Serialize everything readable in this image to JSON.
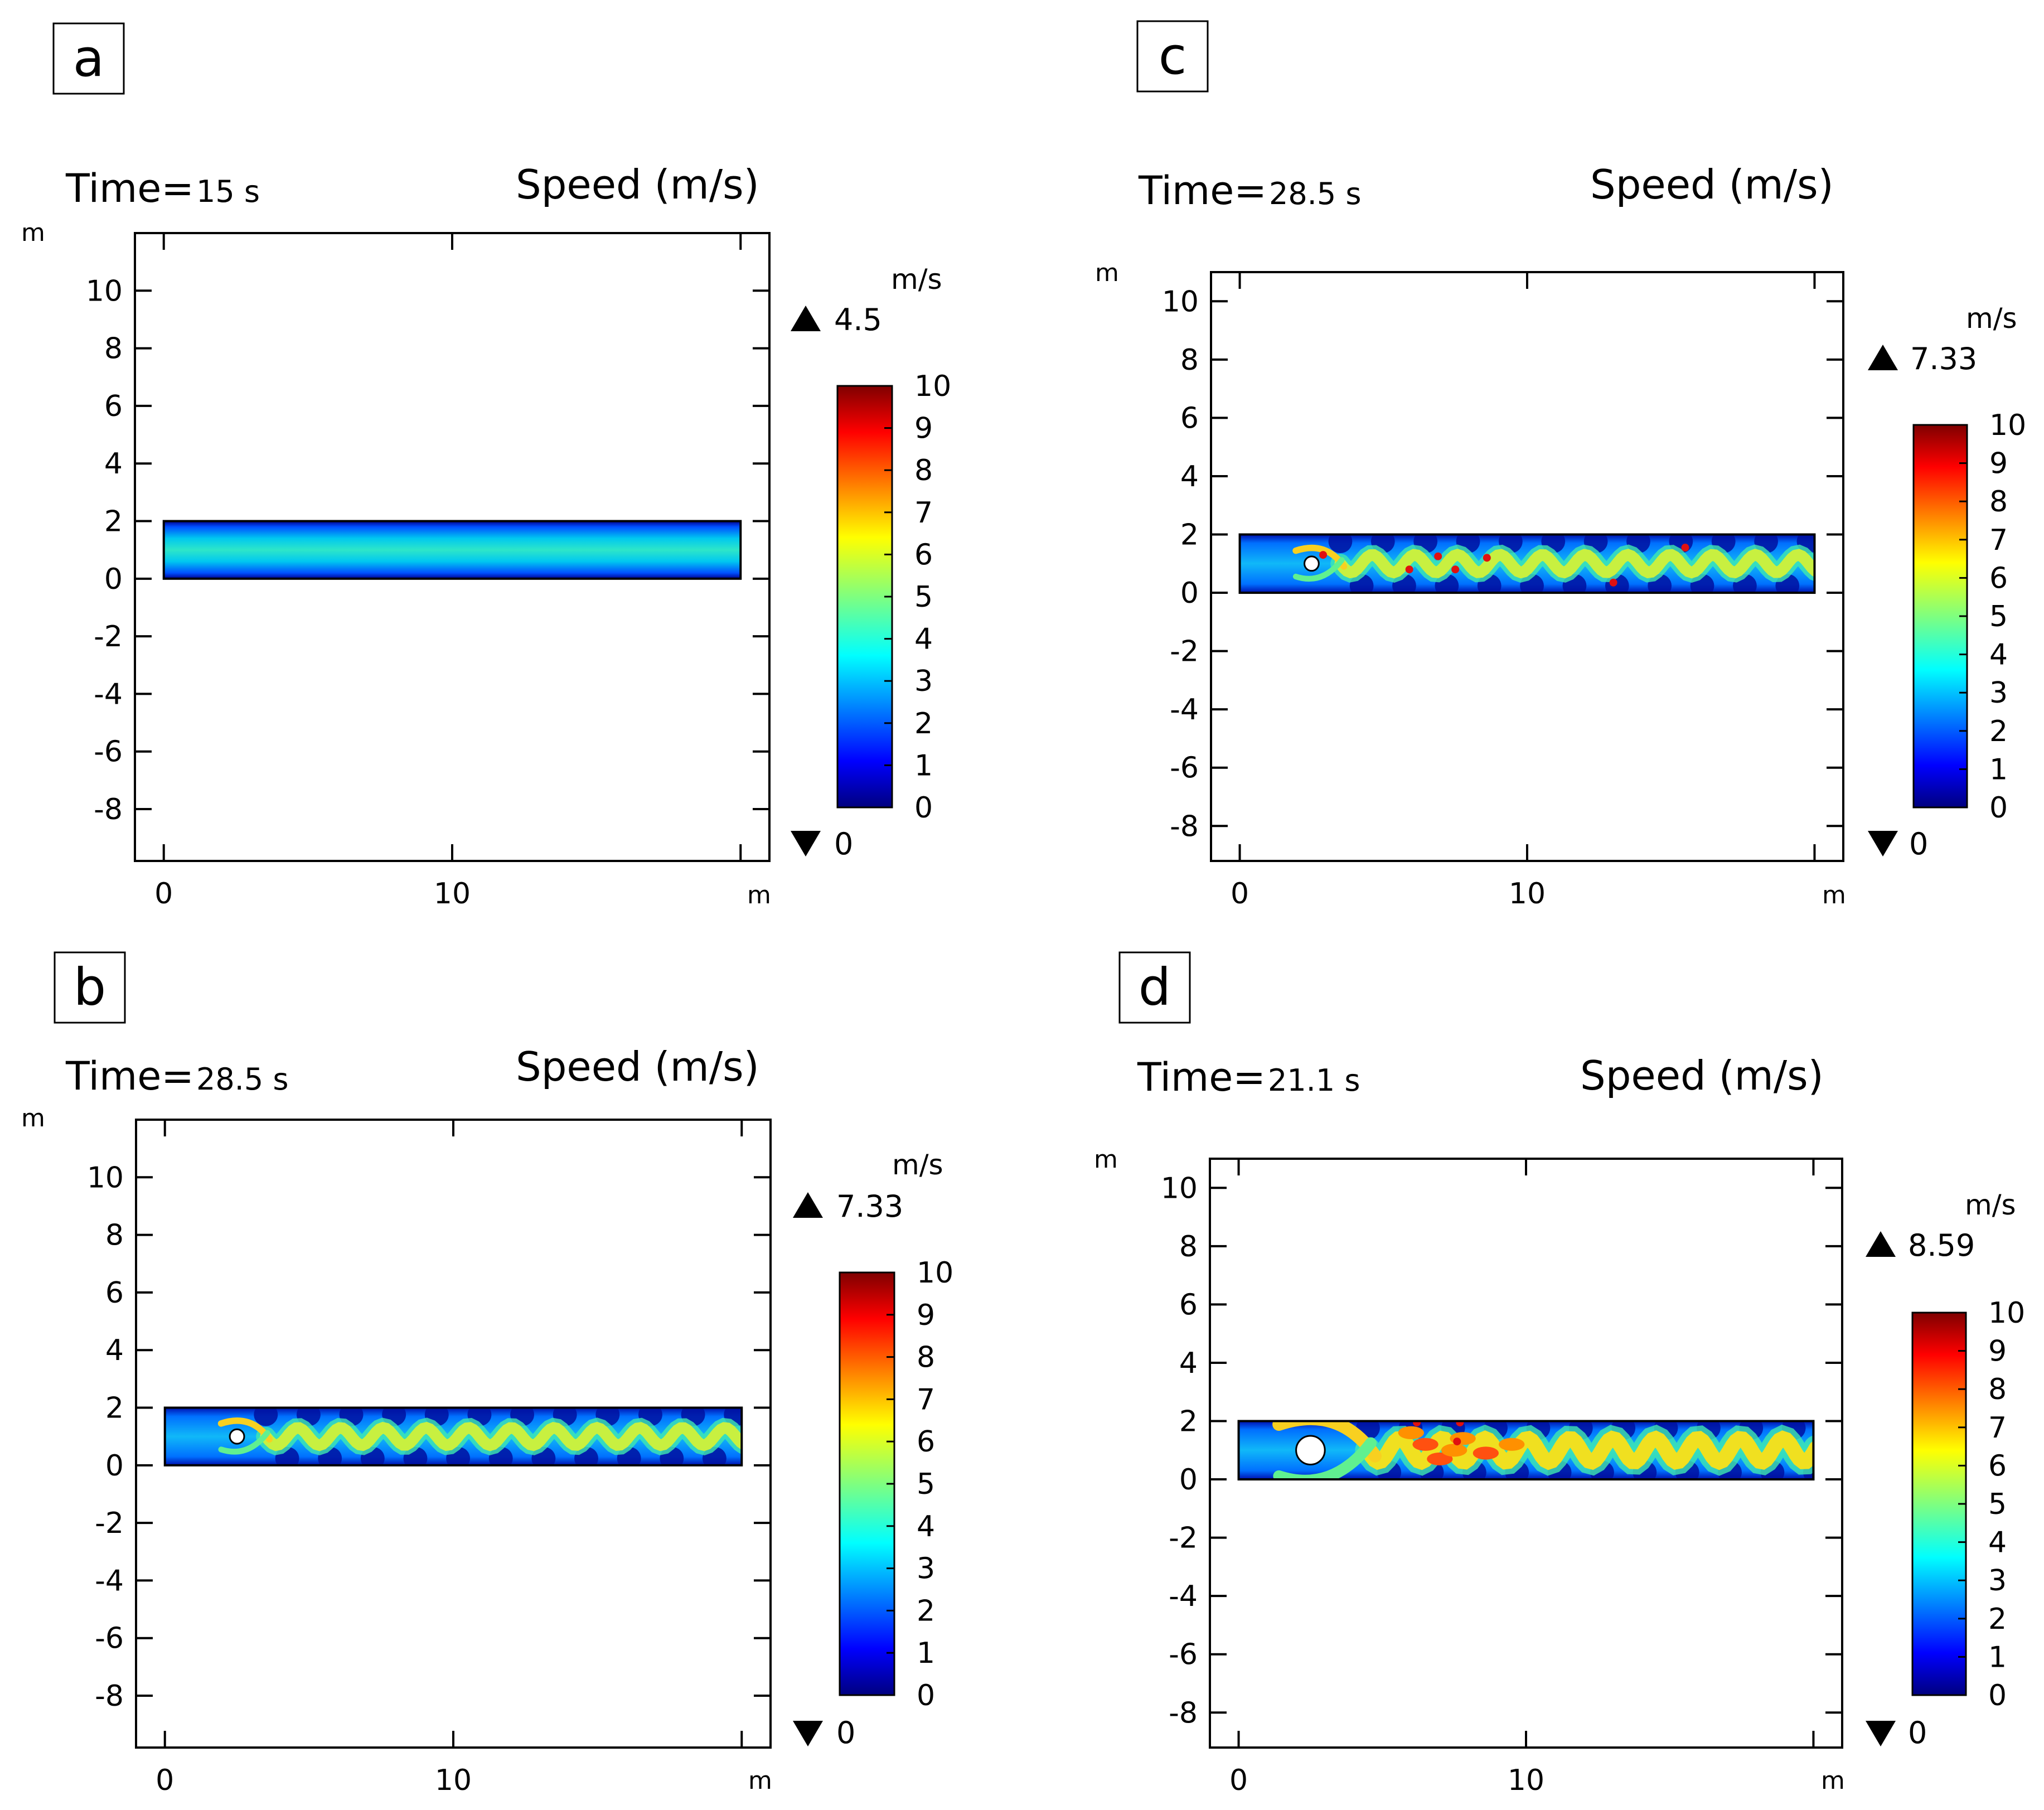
{
  "chart_data": [
    {
      "type": "heatmap",
      "panel_label": "a",
      "time_label": "Time=",
      "time_value": "15 s",
      "title": "Speed (m/s)",
      "x_unit": "m",
      "y_unit": "m",
      "xlim": [
        -1,
        21
      ],
      "ylim": [
        -9.8,
        12
      ],
      "x_ticks": [
        "0",
        "10"
      ],
      "y_ticks": [
        "10",
        "8",
        "6",
        "4",
        "2",
        "0",
        "-2",
        "-4",
        "-6",
        "-8"
      ],
      "channel": {
        "x": [
          0,
          20
        ],
        "y": [
          0,
          2
        ]
      },
      "cylinder": null,
      "wake": "none",
      "colorbar": {
        "unit": "m/s",
        "min": 0,
        "max": 10,
        "ticks": [
          "10",
          "9",
          "8",
          "7",
          "6",
          "5",
          "4",
          "3",
          "2",
          "1",
          "0"
        ],
        "data_max": "4.5",
        "data_min": "0"
      }
    },
    {
      "type": "heatmap",
      "panel_label": "b",
      "time_label": "Time=",
      "time_value": "28.5 s",
      "title": "Speed (m/s)",
      "x_unit": "m",
      "y_unit": "m",
      "xlim": [
        -1,
        21
      ],
      "ylim": [
        -9.8,
        12
      ],
      "x_ticks": [
        "0",
        "10"
      ],
      "y_ticks": [
        "10",
        "8",
        "6",
        "4",
        "2",
        "0",
        "-2",
        "-4",
        "-6",
        "-8"
      ],
      "channel": {
        "x": [
          0,
          20
        ],
        "y": [
          0,
          2
        ]
      },
      "cylinder": {
        "x": 2.5,
        "y": 1.0,
        "r": 0.25
      },
      "wake": "vortex",
      "colorbar": {
        "unit": "m/s",
        "min": 0,
        "max": 10,
        "ticks": [
          "10",
          "9",
          "8",
          "7",
          "6",
          "5",
          "4",
          "3",
          "2",
          "1",
          "0"
        ],
        "data_max": "7.33",
        "data_min": "0"
      }
    },
    {
      "type": "heatmap",
      "panel_label": "c",
      "time_label": "Time=",
      "time_value": "28.5 s",
      "title": "Speed (m/s)",
      "x_unit": "m",
      "y_unit": "m",
      "xlim": [
        -1,
        21
      ],
      "ylim": [
        -9.2,
        11
      ],
      "x_ticks": [
        "0",
        "10"
      ],
      "y_ticks": [
        "10",
        "8",
        "6",
        "4",
        "2",
        "0",
        "-2",
        "-4",
        "-6",
        "-8"
      ],
      "channel": {
        "x": [
          0,
          20
        ],
        "y": [
          0,
          2
        ]
      },
      "cylinder": {
        "x": 2.5,
        "y": 1.0,
        "r": 0.25
      },
      "wake": "vortex-particles",
      "colorbar": {
        "unit": "m/s",
        "min": 0,
        "max": 10,
        "ticks": [
          "10",
          "9",
          "8",
          "7",
          "6",
          "5",
          "4",
          "3",
          "2",
          "1",
          "0"
        ],
        "data_max": "7.33",
        "data_min": "0"
      }
    },
    {
      "type": "heatmap",
      "panel_label": "d",
      "time_label": "Time=",
      "time_value": "21.1 s",
      "title": "Speed (m/s)",
      "x_unit": "m",
      "y_unit": "m",
      "xlim": [
        -1,
        21
      ],
      "ylim": [
        -9.2,
        11
      ],
      "x_ticks": [
        "0",
        "10"
      ],
      "y_ticks": [
        "10",
        "8",
        "6",
        "4",
        "2",
        "0",
        "-2",
        "-4",
        "-6",
        "-8"
      ],
      "channel": {
        "x": [
          0,
          20
        ],
        "y": [
          0,
          2
        ]
      },
      "cylinder": {
        "x": 2.5,
        "y": 1.0,
        "r": 0.5
      },
      "wake": "turbulent",
      "colorbar": {
        "unit": "m/s",
        "min": 0,
        "max": 10,
        "ticks": [
          "10",
          "9",
          "8",
          "7",
          "6",
          "5",
          "4",
          "3",
          "2",
          "1",
          "0"
        ],
        "data_max": "8.59",
        "data_min": "0"
      }
    }
  ]
}
